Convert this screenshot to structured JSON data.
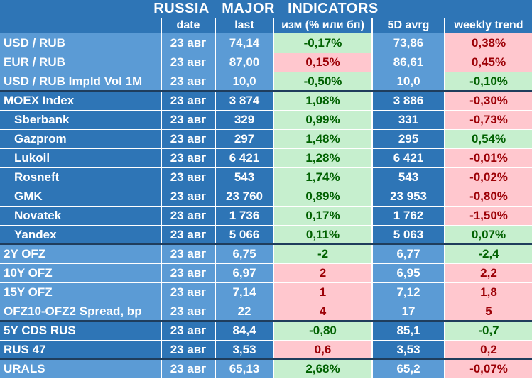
{
  "title": "RUSSIA   MAJOR   INDICATORS",
  "columns": [
    "",
    "date",
    "last",
    "изм (% или бп)",
    "5D avrg",
    "weekly trend"
  ],
  "rows": [
    {
      "name": "USD / RUB",
      "date": "23 авг",
      "last": "74,14",
      "change": "-0,17%",
      "avg5d": "73,86",
      "weekly": "0,38%",
      "change_sign": "pos",
      "weekly_sign": "neg"
    },
    {
      "name": "EUR / RUB",
      "date": "23 авг",
      "last": "87,00",
      "change": "0,15%",
      "avg5d": "86,61",
      "weekly": "0,45%",
      "change_sign": "neg",
      "weekly_sign": "neg"
    },
    {
      "name": "USD / RUB Impld Vol 1M",
      "date": "23 авг",
      "last": "10,0",
      "change": "-0,50%",
      "avg5d": "10,0",
      "weekly": "-0,10%",
      "change_sign": "pos",
      "weekly_sign": "pos"
    },
    {
      "name": "MOEX Index",
      "date": "23 авг",
      "last": "3 874",
      "change": "1,08%",
      "avg5d": "3 886",
      "weekly": "-0,30%",
      "change_sign": "pos",
      "weekly_sign": "neg"
    },
    {
      "name": "Sberbank",
      "date": "23 авг",
      "last": "329",
      "change": "0,99%",
      "avg5d": "331",
      "weekly": "-0,73%",
      "change_sign": "pos",
      "weekly_sign": "neg",
      "indent": true
    },
    {
      "name": "Gazprom",
      "date": "23 авг",
      "last": "297",
      "change": "1,48%",
      "avg5d": "295",
      "weekly": "0,54%",
      "change_sign": "pos",
      "weekly_sign": "pos",
      "indent": true
    },
    {
      "name": "Lukoil",
      "date": "23 авг",
      "last": "6 421",
      "change": "1,28%",
      "avg5d": "6 421",
      "weekly": "-0,01%",
      "change_sign": "pos",
      "weekly_sign": "neg",
      "indent": true
    },
    {
      "name": "Rosneft",
      "date": "23 авг",
      "last": "543",
      "change": "1,74%",
      "avg5d": "543",
      "weekly": "-0,02%",
      "change_sign": "pos",
      "weekly_sign": "neg",
      "indent": true
    },
    {
      "name": "GMK",
      "date": "23 авг",
      "last": "23 760",
      "change": "0,89%",
      "avg5d": "23 953",
      "weekly": "-0,80%",
      "change_sign": "pos",
      "weekly_sign": "neg",
      "indent": true
    },
    {
      "name": "Novatek",
      "date": "23 авг",
      "last": "1 736",
      "change": "0,17%",
      "avg5d": "1 762",
      "weekly": "-1,50%",
      "change_sign": "pos",
      "weekly_sign": "neg",
      "indent": true
    },
    {
      "name": "Yandex",
      "date": "23 авг",
      "last": "5 066",
      "change": "0,11%",
      "avg5d": "5 063",
      "weekly": "0,07%",
      "change_sign": "pos",
      "weekly_sign": "pos",
      "indent": true
    },
    {
      "name": "2Y OFZ",
      "date": "23 авг",
      "last": "6,75",
      "change": "-2",
      "avg5d": "6,77",
      "weekly": "-2,4",
      "change_sign": "pos",
      "weekly_sign": "pos"
    },
    {
      "name": "10Y OFZ",
      "date": "23 авг",
      "last": "6,97",
      "change": "2",
      "avg5d": "6,95",
      "weekly": "2,2",
      "change_sign": "neg",
      "weekly_sign": "neg"
    },
    {
      "name": "15Y OFZ",
      "date": "23 авг",
      "last": "7,14",
      "change": "1",
      "avg5d": "7,12",
      "weekly": "1,8",
      "change_sign": "neg",
      "weekly_sign": "neg"
    },
    {
      "name": "OFZ10-OFZ2 Spread, bp",
      "date": "23 авг",
      "last": "22",
      "change": "4",
      "avg5d": "17",
      "weekly": "5",
      "change_sign": "neg",
      "weekly_sign": "neg"
    },
    {
      "name": "5Y CDS RUS",
      "date": "23 авг",
      "last": "84,4",
      "change": "-0,80",
      "avg5d": "85,1",
      "weekly": "-0,7",
      "change_sign": "pos",
      "weekly_sign": "pos"
    },
    {
      "name": "RUS 47",
      "date": "23 авг",
      "last": "3,53",
      "change": "0,6",
      "avg5d": "3,53",
      "weekly": "0,2",
      "change_sign": "neg",
      "weekly_sign": "neg"
    },
    {
      "name": "URALS",
      "date": "23 авг",
      "last": "65,13",
      "change": "2,68%",
      "avg5d": "65,2",
      "weekly": "-0,07%",
      "change_sign": "pos",
      "weekly_sign": "neg"
    }
  ],
  "colors": {
    "header_bg": "#2e75b6",
    "row_light": "#5b9bd5",
    "row_dark": "#2e75b6",
    "positive_bg": "#c6efce",
    "positive_text": "#006100",
    "negative_bg": "#ffc7ce",
    "negative_text": "#9c0006"
  }
}
